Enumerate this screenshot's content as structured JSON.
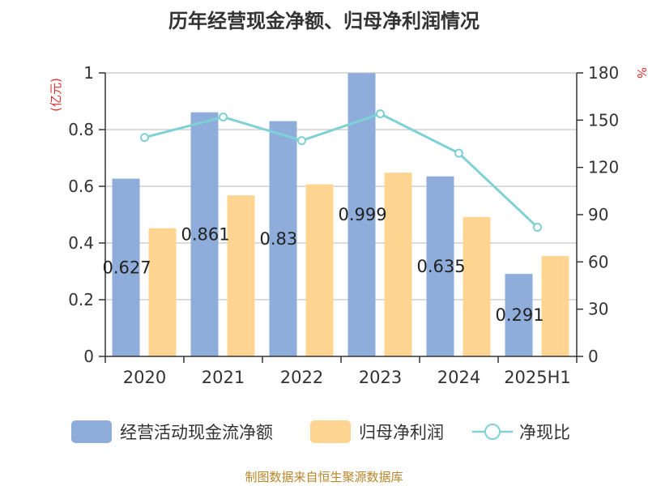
{
  "title": "历年经营现金净额、归母净利润情况",
  "source": "制图数据来自恒生聚源数据库",
  "colors": {
    "cash_flow": "#8eadda",
    "net_profit": "#ffd591",
    "ratio": "#7fd1d5",
    "axis_unit_red": "#e03030",
    "grid": "#c8c8c8"
  },
  "chart_data": {
    "type": "bar",
    "title": "历年经营现金净额、归母净利润情况",
    "categories": [
      "2020",
      "2021",
      "2022",
      "2023",
      "2024",
      "2025H1"
    ],
    "y_left": {
      "unit": "(亿元)",
      "range": [
        0,
        1
      ],
      "ticks": [
        "0",
        "0.2",
        "0.4",
        "0.6",
        "0.8",
        "1"
      ]
    },
    "y_right": {
      "unit": "%",
      "range": [
        0,
        180
      ],
      "ticks": [
        "0",
        "30",
        "60",
        "90",
        "120",
        "150",
        "180"
      ]
    },
    "grid": true,
    "legend_position": "bottom",
    "series": [
      {
        "name": "经营活动现金流净额",
        "type": "bar",
        "axis": "left",
        "values": [
          0.627,
          0.861,
          0.83,
          0.999,
          0.635,
          0.291
        ],
        "labels": [
          "0.627",
          "0.861",
          "0.83",
          "0.999",
          "0.635",
          "0.291"
        ]
      },
      {
        "name": "归母净利润",
        "type": "bar",
        "axis": "left",
        "values": [
          0.452,
          0.568,
          0.607,
          0.648,
          0.492,
          0.354
        ]
      },
      {
        "name": "净现比",
        "type": "line",
        "axis": "right",
        "values": [
          139,
          152,
          137,
          154,
          129,
          82
        ]
      }
    ]
  },
  "legend": [
    {
      "label": "经营活动现金流净额"
    },
    {
      "label": "归母净利润"
    },
    {
      "label": "净现比"
    }
  ]
}
